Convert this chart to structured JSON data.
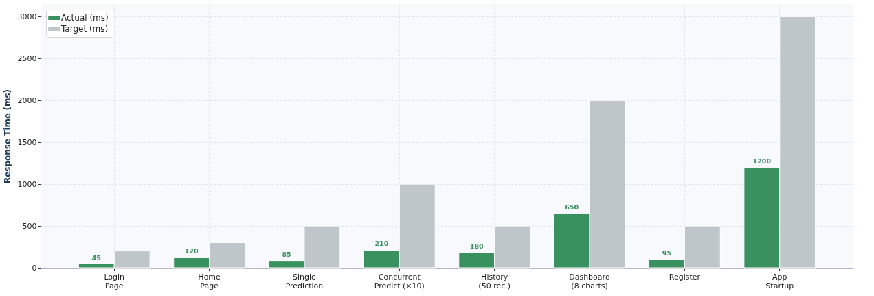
{
  "chart_data": {
    "type": "bar",
    "ylabel": "Response Time (ms)",
    "categories": [
      "Login\nPage",
      "Home\nPage",
      "Single\nPrediction",
      "Concurrent\nPredict (×10)",
      "History\n(50 rec.)",
      "Dashboard\n(8 charts)",
      "Register",
      "App\nStartup"
    ],
    "series": [
      {
        "name": "Actual (ms)",
        "color": "#3a9160",
        "values": [
          45,
          120,
          85,
          210,
          180,
          650,
          95,
          1200
        ],
        "value_labels": [
          "45",
          "120",
          "85",
          "210",
          "180",
          "650",
          "95",
          "1200"
        ]
      },
      {
        "name": "Target (ms)",
        "color": "#bfc6ca",
        "values": [
          200,
          300,
          500,
          1000,
          500,
          2000,
          500,
          3000
        ]
      }
    ],
    "ylim": [
      0,
      3150
    ],
    "yticks": [
      0,
      500,
      1000,
      1500,
      2000,
      2500,
      3000
    ],
    "grid": true,
    "legend": "top left"
  }
}
